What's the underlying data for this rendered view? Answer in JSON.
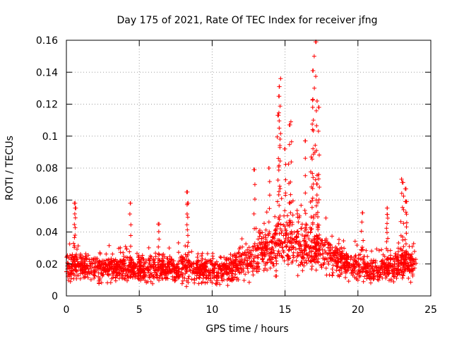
{
  "chart_data": {
    "type": "scatter",
    "title": "Day 175 of 2021, Rate Of TEC Index for receiver jfng",
    "xlabel": "GPS time / hours",
    "ylabel": "ROTI / TECUs",
    "xlim": [
      0,
      25
    ],
    "ylim": [
      0,
      0.16
    ],
    "x_ticks": [
      0,
      5,
      10,
      15,
      20,
      25
    ],
    "x_tick_labels": [
      "0",
      "5",
      "10",
      "15",
      "20",
      "25"
    ],
    "y_ticks": [
      0,
      0.02,
      0.04,
      0.06,
      0.08,
      0.1,
      0.12,
      0.14,
      0.16
    ],
    "y_tick_labels": [
      "0",
      "0.02",
      "0.04",
      "0.06",
      "0.08",
      "0.1",
      "0.12",
      "0.14",
      "0.16"
    ],
    "grid": true,
    "marker": "+",
    "color": "#ff0000",
    "series": [
      {
        "name": "ROTI",
        "x_range": [
          0,
          24
        ],
        "profile": [
          [
            0,
            0.018
          ],
          [
            1,
            0.018
          ],
          [
            2,
            0.017
          ],
          [
            3,
            0.017
          ],
          [
            4,
            0.018
          ],
          [
            5,
            0.017
          ],
          [
            6,
            0.016
          ],
          [
            7,
            0.017
          ],
          [
            8,
            0.018
          ],
          [
            9,
            0.017
          ],
          [
            10,
            0.016
          ],
          [
            11,
            0.017
          ],
          [
            12,
            0.02
          ],
          [
            13,
            0.024
          ],
          [
            14,
            0.03
          ],
          [
            15,
            0.034
          ],
          [
            16,
            0.033
          ],
          [
            17,
            0.03
          ],
          [
            18,
            0.025
          ],
          [
            19,
            0.021
          ],
          [
            20,
            0.018
          ],
          [
            21,
            0.016
          ],
          [
            22,
            0.017
          ],
          [
            23,
            0.02
          ],
          [
            24,
            0.018
          ]
        ],
        "peaks": [
          [
            0.6,
            0.058
          ],
          [
            0.6,
            0.055
          ],
          [
            4.4,
            0.058
          ],
          [
            6.3,
            0.045
          ],
          [
            8.3,
            0.065
          ],
          [
            8.3,
            0.058
          ],
          [
            12.9,
            0.079
          ],
          [
            13.9,
            0.08
          ],
          [
            14.6,
            0.131
          ],
          [
            14.7,
            0.136
          ],
          [
            14.6,
            0.125
          ],
          [
            14.5,
            0.113
          ],
          [
            14.6,
            0.105
          ],
          [
            15.4,
            0.109
          ],
          [
            15.3,
            0.107
          ],
          [
            15.0,
            0.092
          ],
          [
            16.4,
            0.097
          ],
          [
            16.8,
            0.087
          ],
          [
            16.9,
            0.141
          ],
          [
            16.9,
            0.123
          ],
          [
            16.9,
            0.118
          ],
          [
            17.0,
            0.15
          ],
          [
            17.1,
            0.159
          ],
          [
            17.2,
            0.122
          ],
          [
            17.3,
            0.118
          ],
          [
            17.3,
            0.076
          ],
          [
            17.2,
            0.07
          ],
          [
            20.3,
            0.052
          ],
          [
            22.0,
            0.051
          ],
          [
            22.0,
            0.055
          ],
          [
            23.0,
            0.073
          ],
          [
            23.1,
            0.071
          ],
          [
            23.3,
            0.067
          ],
          [
            23.3,
            0.059
          ]
        ]
      }
    ]
  }
}
